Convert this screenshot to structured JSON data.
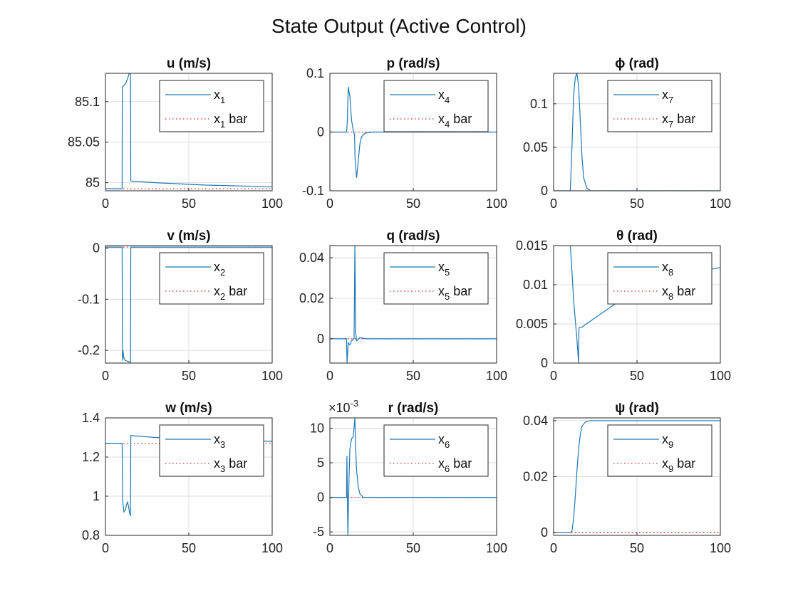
{
  "figure": {
    "title": "State Output (Active Control)"
  },
  "style": {
    "series_color": "#1f77b4",
    "ref_color": "#d62728"
  },
  "chart_data": [
    {
      "type": "line",
      "title": "u (m/s)",
      "xlim": [
        0,
        100
      ],
      "ylim": [
        84.99,
        85.135
      ],
      "xticks": [
        0,
        50,
        100
      ],
      "yticks": [
        85,
        85.05,
        85.1
      ],
      "legend": "top-right",
      "series": [
        {
          "name": "x",
          "sub": "1",
          "label": "x1",
          "style": "solid",
          "points": [
            [
              0,
              84.9925
            ],
            [
              10,
              84.9925
            ],
            [
              10.1,
              85.118
            ],
            [
              12,
              85.122
            ],
            [
              13.5,
              85.13
            ],
            [
              15,
              85.14
            ],
            [
              15.2,
              85.002
            ],
            [
              30,
              85.0
            ],
            [
              60,
              84.997
            ],
            [
              100,
              84.995
            ]
          ]
        },
        {
          "name": "x",
          "sub": "1",
          "label": "x1 bar",
          "style": "dotted",
          "points": [
            [
              0,
              84.9925
            ],
            [
              100,
              84.9925
            ]
          ]
        }
      ]
    },
    {
      "type": "line",
      "title": "p (rad/s)",
      "xlim": [
        0,
        100
      ],
      "ylim": [
        -0.1,
        0.1
      ],
      "xticks": [
        0,
        50,
        100
      ],
      "yticks": [
        -0.1,
        0,
        0.1
      ],
      "legend": "top-right",
      "series": [
        {
          "name": "x",
          "sub": "4",
          "label": "x4",
          "style": "solid",
          "points": [
            [
              0,
              0
            ],
            [
              10,
              0
            ],
            [
              10.5,
              0.02
            ],
            [
              11,
              0.077
            ],
            [
              12,
              0.06
            ],
            [
              13,
              0.02
            ],
            [
              14,
              0.003
            ],
            [
              14.8,
              -0.005
            ],
            [
              15.1,
              -0.045
            ],
            [
              16,
              -0.078
            ],
            [
              17,
              -0.05
            ],
            [
              18,
              -0.02
            ],
            [
              19,
              -0.008
            ],
            [
              21,
              -0.002
            ],
            [
              25,
              0
            ],
            [
              100,
              0
            ]
          ]
        },
        {
          "name": "x",
          "sub": "4",
          "label": "x4 bar",
          "style": "dotted",
          "points": [
            [
              0,
              0
            ],
            [
              100,
              0
            ]
          ]
        }
      ]
    },
    {
      "type": "line",
      "title": "ϕ (rad)",
      "xlim": [
        0,
        100
      ],
      "ylim": [
        0,
        0.135
      ],
      "xticks": [
        0,
        50,
        100
      ],
      "yticks": [
        0,
        0.05,
        0.1
      ],
      "legend": "top-right",
      "series": [
        {
          "name": "x",
          "sub": "7",
          "label": "x7",
          "style": "solid",
          "points": [
            [
              0,
              0
            ],
            [
              10,
              0
            ],
            [
              11,
              0.05
            ],
            [
              12,
              0.11
            ],
            [
              13,
              0.13
            ],
            [
              14,
              0.135
            ],
            [
              15,
              0.12
            ],
            [
              16,
              0.08
            ],
            [
              17,
              0.04
            ],
            [
              18,
              0.015
            ],
            [
              20,
              0.003
            ],
            [
              22,
              0.0
            ],
            [
              100,
              0
            ]
          ]
        },
        {
          "name": "x",
          "sub": "7",
          "label": "x7 bar",
          "style": "dotted",
          "points": [
            [
              0,
              0
            ],
            [
              100,
              0
            ]
          ]
        }
      ]
    },
    {
      "type": "line",
      "title": "v (m/s)",
      "xlim": [
        0,
        100
      ],
      "ylim": [
        -0.225,
        0.005
      ],
      "xticks": [
        0,
        50,
        100
      ],
      "yticks": [
        -0.2,
        -0.1,
        0
      ],
      "legend": "top-right",
      "series": [
        {
          "name": "x",
          "sub": "2",
          "label": "x2",
          "style": "solid",
          "points": [
            [
              0,
              0.002
            ],
            [
              10,
              0.002
            ],
            [
              10.2,
              -0.22
            ],
            [
              10.5,
              -0.2
            ],
            [
              11,
              -0.215
            ],
            [
              12,
              -0.22
            ],
            [
              14,
              -0.222
            ],
            [
              15,
              -0.225
            ],
            [
              15.2,
              0.002
            ],
            [
              100,
              0.002
            ]
          ]
        },
        {
          "name": "x",
          "sub": "2",
          "label": "x2 bar",
          "style": "dotted",
          "points": [
            [
              0,
              0.002
            ],
            [
              100,
              0.002
            ]
          ]
        }
      ]
    },
    {
      "type": "line",
      "title": "q (rad/s)",
      "xlim": [
        0,
        100
      ],
      "ylim": [
        -0.012,
        0.046
      ],
      "xticks": [
        0,
        50,
        100
      ],
      "yticks": [
        0,
        0.02,
        0.04
      ],
      "legend": "top-right",
      "series": [
        {
          "name": "x",
          "sub": "5",
          "label": "x5",
          "style": "solid",
          "points": [
            [
              0,
              0
            ],
            [
              10,
              0
            ],
            [
              10.3,
              -0.012
            ],
            [
              11,
              -0.002
            ],
            [
              12,
              -0.003
            ],
            [
              13,
              -0.001
            ],
            [
              14.5,
              0
            ],
            [
              15,
              0.046
            ],
            [
              15.5,
              0.003
            ],
            [
              16,
              -0.001
            ],
            [
              18,
              0.0005
            ],
            [
              22,
              0
            ],
            [
              100,
              0
            ]
          ]
        },
        {
          "name": "x",
          "sub": "5",
          "label": "x5 bar",
          "style": "dotted",
          "points": [
            [
              0,
              0
            ],
            [
              100,
              0
            ]
          ]
        }
      ]
    },
    {
      "type": "line",
      "title": "θ (rad)",
      "xlim": [
        0,
        100
      ],
      "ylim": [
        0,
        0.015
      ],
      "xticks": [
        0,
        50,
        100
      ],
      "yticks": [
        0,
        0.005,
        0.01,
        0.015
      ],
      "legend": "top-right",
      "series": [
        {
          "name": "x",
          "sub": "8",
          "label": "x8",
          "style": "solid",
          "points": [
            [
              10,
              0.015
            ],
            [
              10.5,
              0.0135
            ],
            [
              12,
              0.008
            ],
            [
              14,
              0.003
            ],
            [
              15,
              0.0
            ],
            [
              15.2,
              0.0045
            ],
            [
              17,
              0.0046
            ],
            [
              25,
              0.0058
            ],
            [
              40,
              0.008
            ],
            [
              55,
              0.0095
            ],
            [
              70,
              0.0107
            ],
            [
              85,
              0.0116
            ],
            [
              100,
              0.0122
            ]
          ]
        },
        {
          "name": "x",
          "sub": "8",
          "label": "x8 bar",
          "style": "dotted",
          "points": [
            [
              0,
              0.015
            ],
            [
              100,
              0.015
            ]
          ]
        }
      ]
    },
    {
      "type": "line",
      "title": "w (m/s)",
      "xlim": [
        0,
        100
      ],
      "ylim": [
        0.8,
        1.4
      ],
      "xticks": [
        0,
        50,
        100
      ],
      "yticks": [
        0.8,
        1,
        1.2,
        1.4
      ],
      "legend": "top-right",
      "series": [
        {
          "name": "x",
          "sub": "3",
          "label": "x3",
          "style": "solid",
          "points": [
            [
              0,
              1.27
            ],
            [
              10,
              1.27
            ],
            [
              10.3,
              0.98
            ],
            [
              11,
              0.92
            ],
            [
              12,
              0.93
            ],
            [
              12.7,
              0.96
            ],
            [
              13.3,
              0.97
            ],
            [
              14,
              0.94
            ],
            [
              14.7,
              0.905
            ],
            [
              15,
              0.9
            ],
            [
              15.2,
              1.31
            ],
            [
              30,
              1.3
            ],
            [
              60,
              1.29
            ],
            [
              100,
              1.28
            ]
          ]
        },
        {
          "name": "x",
          "sub": "3",
          "label": "x3 bar",
          "style": "dotted",
          "points": [
            [
              0,
              1.27
            ],
            [
              100,
              1.27
            ]
          ]
        }
      ]
    },
    {
      "type": "line",
      "title": "r (rad/s)",
      "exponent": "-3",
      "xlim": [
        0,
        100
      ],
      "ylim": [
        -5.5,
        11.5
      ],
      "xticks": [
        0,
        50,
        100
      ],
      "yticks": [
        -5,
        0,
        5,
        10
      ],
      "legend": "top-right",
      "series": [
        {
          "name": "x",
          "sub": "6",
          "label": "x6",
          "style": "solid",
          "points": [
            [
              0,
              0
            ],
            [
              10,
              0
            ],
            [
              10.2,
              6
            ],
            [
              10.8,
              -5.5
            ],
            [
              11.5,
              3
            ],
            [
              12,
              7
            ],
            [
              13,
              8.5
            ],
            [
              14,
              8.8
            ],
            [
              15,
              11.5
            ],
            [
              15.3,
              8
            ],
            [
              16,
              4
            ],
            [
              17,
              1.5
            ],
            [
              18,
              0.5
            ],
            [
              20,
              0
            ],
            [
              100,
              0
            ]
          ]
        },
        {
          "name": "x",
          "sub": "6",
          "label": "x6 bar",
          "style": "dotted",
          "points": [
            [
              0,
              0
            ],
            [
              100,
              0
            ]
          ]
        }
      ]
    },
    {
      "type": "line",
      "title": "ψ (rad)",
      "xlim": [
        0,
        100
      ],
      "ylim": [
        -0.001,
        0.041
      ],
      "xticks": [
        0,
        50,
        100
      ],
      "yticks": [
        0,
        0.02,
        0.04
      ],
      "legend": "top-right",
      "series": [
        {
          "name": "x",
          "sub": "9",
          "label": "x9",
          "style": "solid",
          "points": [
            [
              0,
              0
            ],
            [
              10,
              0
            ],
            [
              11,
              0.0005
            ],
            [
              12,
              0.005
            ],
            [
              13,
              0.013
            ],
            [
              14,
              0.022
            ],
            [
              15,
              0.03
            ],
            [
              16,
              0.035
            ],
            [
              17,
              0.038
            ],
            [
              19,
              0.0395
            ],
            [
              22,
              0.04
            ],
            [
              100,
              0.04
            ]
          ]
        },
        {
          "name": "x",
          "sub": "9",
          "label": "x9 bar",
          "style": "dotted",
          "points": [
            [
              0,
              0
            ],
            [
              100,
              0
            ]
          ]
        }
      ]
    }
  ]
}
